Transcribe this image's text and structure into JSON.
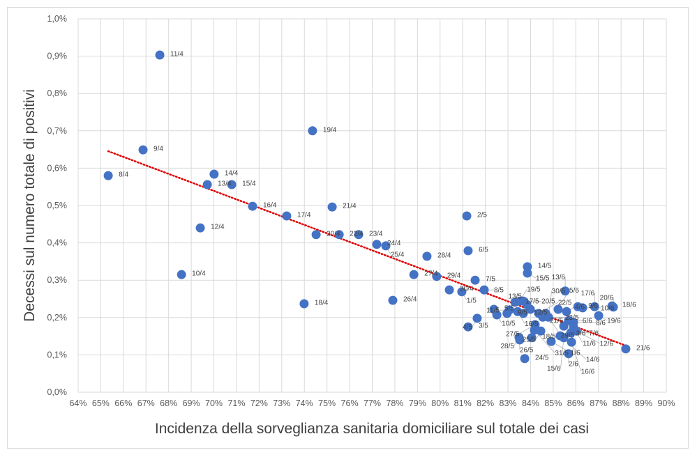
{
  "chart_data": {
    "type": "scatter",
    "title": "",
    "xlabel": "Incidenza della sorveglianza sanitaria domiciliare sul totale dei casi",
    "ylabel": "Decessi sul numero totale di positivi",
    "xlim": [
      64,
      90
    ],
    "ylim": [
      0,
      1.0
    ],
    "x_unit": "%",
    "y_unit": "%",
    "x_ticks": [
      "64%",
      "65%",
      "66%",
      "67%",
      "68%",
      "69%",
      "70%",
      "71%",
      "72%",
      "73%",
      "74%",
      "75%",
      "76%",
      "77%",
      "78%",
      "79%",
      "80%",
      "81%",
      "82%",
      "83%",
      "84%",
      "85%",
      "86%",
      "87%",
      "88%",
      "89%",
      "90%"
    ],
    "y_ticks": [
      "0,0%",
      "0,1%",
      "0,2%",
      "0,3%",
      "0,4%",
      "0,5%",
      "0,6%",
      "0,7%",
      "0,8%",
      "0,9%",
      "1,0%"
    ],
    "grid": true,
    "legend": "none",
    "marker_color": "#4472c4",
    "trendline": {
      "type": "linear",
      "color": "#e00000",
      "style": "dotted"
    },
    "points": [
      {
        "label": "8/4",
        "x": 65.33,
        "y": 0.58
      },
      {
        "label": "9/4",
        "x": 66.87,
        "y": 0.649
      },
      {
        "label": "10/4",
        "x": 68.57,
        "y": 0.315
      },
      {
        "label": "11/4",
        "x": 67.61,
        "y": 0.903
      },
      {
        "label": "12/4",
        "x": 69.4,
        "y": 0.44
      },
      {
        "label": "13/4",
        "x": 69.71,
        "y": 0.556
      },
      {
        "label": "14/4",
        "x": 70.01,
        "y": 0.584
      },
      {
        "label": "15/4",
        "x": 70.79,
        "y": 0.556
      },
      {
        "label": "16/4",
        "x": 71.71,
        "y": 0.498
      },
      {
        "label": "17/4",
        "x": 73.22,
        "y": 0.472
      },
      {
        "label": "18/4",
        "x": 73.99,
        "y": 0.237
      },
      {
        "label": "19/4",
        "x": 74.36,
        "y": 0.7
      },
      {
        "label": "20/4",
        "x": 74.52,
        "y": 0.422
      },
      {
        "label": "21/4",
        "x": 75.23,
        "y": 0.496
      },
      {
        "label": "22/4",
        "x": 75.54,
        "y": 0.422
      },
      {
        "label": "23/4",
        "x": 76.4,
        "y": 0.422
      },
      {
        "label": "24/4",
        "x": 77.2,
        "y": 0.396
      },
      {
        "label": "25/4",
        "x": 77.6,
        "y": 0.392
      },
      {
        "label": "26/4",
        "x": 77.91,
        "y": 0.246
      },
      {
        "label": "27/4",
        "x": 78.84,
        "y": 0.315
      },
      {
        "label": "28/4",
        "x": 79.42,
        "y": 0.364
      },
      {
        "label": "29/4",
        "x": 79.85,
        "y": 0.31
      },
      {
        "label": "30/4",
        "x": 80.41,
        "y": 0.274
      },
      {
        "label": "1/5",
        "x": 80.96,
        "y": 0.269
      },
      {
        "label": "2/5",
        "x": 81.18,
        "y": 0.472
      },
      {
        "label": "3/5",
        "x": 81.24,
        "y": 0.175
      },
      {
        "label": "4/5",
        "x": 81.64,
        "y": 0.198
      },
      {
        "label": "5/5",
        "x": 82.38,
        "y": 0.222
      },
      {
        "label": "6/5",
        "x": 81.24,
        "y": 0.379
      },
      {
        "label": "7/5",
        "x": 81.55,
        "y": 0.3
      },
      {
        "label": "8/5",
        "x": 81.95,
        "y": 0.274
      },
      {
        "label": "9/5",
        "x": 82.96,
        "y": 0.211
      },
      {
        "label": "10/5",
        "x": 82.51,
        "y": 0.207
      },
      {
        "label": "11/5",
        "x": 83.06,
        "y": 0.22
      },
      {
        "label": "12/5",
        "x": 83.68,
        "y": 0.211
      },
      {
        "label": "13/5",
        "x": 83.83,
        "y": 0.235
      },
      {
        "label": "14/5",
        "x": 83.86,
        "y": 0.336
      },
      {
        "label": "15/5",
        "x": 83.86,
        "y": 0.319
      },
      {
        "label": "16/5",
        "x": 83.43,
        "y": 0.216
      },
      {
        "label": "17/5",
        "x": 83.31,
        "y": 0.241
      },
      {
        "label": "18/5",
        "x": 84.05,
        "y": 0.146
      },
      {
        "label": "19/5",
        "x": 83.53,
        "y": 0.244
      },
      {
        "label": "20/5",
        "x": 83.68,
        "y": 0.244
      },
      {
        "label": "21/5",
        "x": 83.99,
        "y": 0.222
      },
      {
        "label": "22/5",
        "x": 84.36,
        "y": 0.211
      },
      {
        "label": "23/5",
        "x": 84.54,
        "y": 0.201
      },
      {
        "label": "24/5",
        "x": 83.74,
        "y": 0.09
      },
      {
        "label": "25/5",
        "x": 84.45,
        "y": 0.164
      },
      {
        "label": "26/5",
        "x": 83.52,
        "y": 0.14
      },
      {
        "label": "27/5",
        "x": 84.2,
        "y": 0.181
      },
      {
        "label": "28/5",
        "x": 83.49,
        "y": 0.147
      },
      {
        "label": "29/5",
        "x": 84.67,
        "y": 0.211
      },
      {
        "label": "30/5",
        "x": 84.79,
        "y": 0.201
      },
      {
        "label": "31/5",
        "x": 84.17,
        "y": 0.166
      },
      {
        "label": "1/6",
        "x": 84.91,
        "y": 0.136
      },
      {
        "label": "2/6",
        "x": 85.68,
        "y": 0.103
      },
      {
        "label": "3/6",
        "x": 85.47,
        "y": 0.177
      },
      {
        "label": "4/6",
        "x": 85.59,
        "y": 0.216
      },
      {
        "label": "5/6",
        "x": 85.22,
        "y": 0.222
      },
      {
        "label": "6/6",
        "x": 85.68,
        "y": 0.192
      },
      {
        "label": "7/6",
        "x": 85.78,
        "y": 0.159
      },
      {
        "label": "8/6",
        "x": 85.9,
        "y": 0.187
      },
      {
        "label": "9/6",
        "x": 86.09,
        "y": 0.229
      },
      {
        "label": "10/6",
        "x": 86.3,
        "y": 0.226
      },
      {
        "label": "11/6",
        "x": 85.9,
        "y": 0.174
      },
      {
        "label": "12/6",
        "x": 86.02,
        "y": 0.164
      },
      {
        "label": "13/6",
        "x": 85.53,
        "y": 0.271
      },
      {
        "label": "14/6",
        "x": 85.31,
        "y": 0.151
      },
      {
        "label": "15/6",
        "x": 85.47,
        "y": 0.146
      },
      {
        "label": "16/6",
        "x": 85.81,
        "y": 0.134
      },
      {
        "label": "17/6",
        "x": 86.83,
        "y": 0.229
      },
      {
        "label": "18/6",
        "x": 87.6,
        "y": 0.231
      },
      {
        "label": "19/6",
        "x": 87.01,
        "y": 0.205
      },
      {
        "label": "20/6",
        "x": 87.66,
        "y": 0.228
      },
      {
        "label": "21/6",
        "x": 88.21,
        "y": 0.116
      }
    ]
  }
}
